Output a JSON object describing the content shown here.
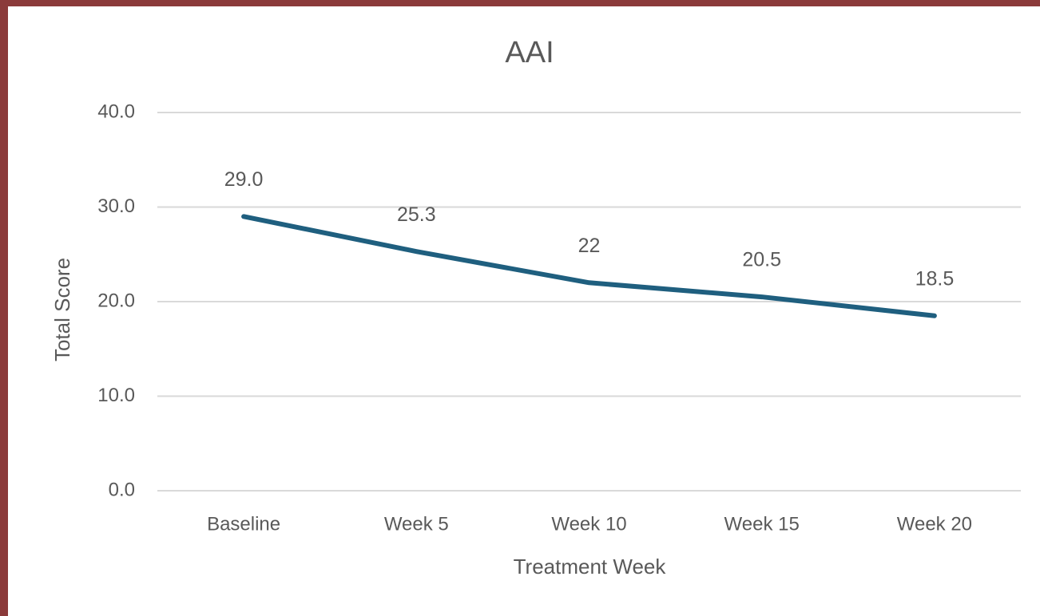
{
  "chart_data": {
    "type": "line",
    "title": "AAI",
    "x_label": "Treatment Week",
    "y_label": "Total Score",
    "categories": [
      "Baseline",
      "Week 5",
      "Week 10",
      "Week 15",
      "Week 20"
    ],
    "series": [
      {
        "name": "AAI",
        "color": "#1f5f7f",
        "values": [
          29,
          25.3,
          22,
          20.5,
          18.5
        ],
        "value_labels": [
          "29.0",
          "25.3",
          "22",
          "20.5",
          "18.5"
        ]
      }
    ],
    "ylim": [
      0,
      40
    ],
    "yticks": [
      {
        "value": 0,
        "label": "0.0"
      },
      {
        "value": 10,
        "label": "10.0"
      },
      {
        "value": 20,
        "label": "20.0"
      },
      {
        "value": 30,
        "label": "30.0"
      },
      {
        "value": 40,
        "label": "40.0"
      }
    ],
    "grid": true
  }
}
